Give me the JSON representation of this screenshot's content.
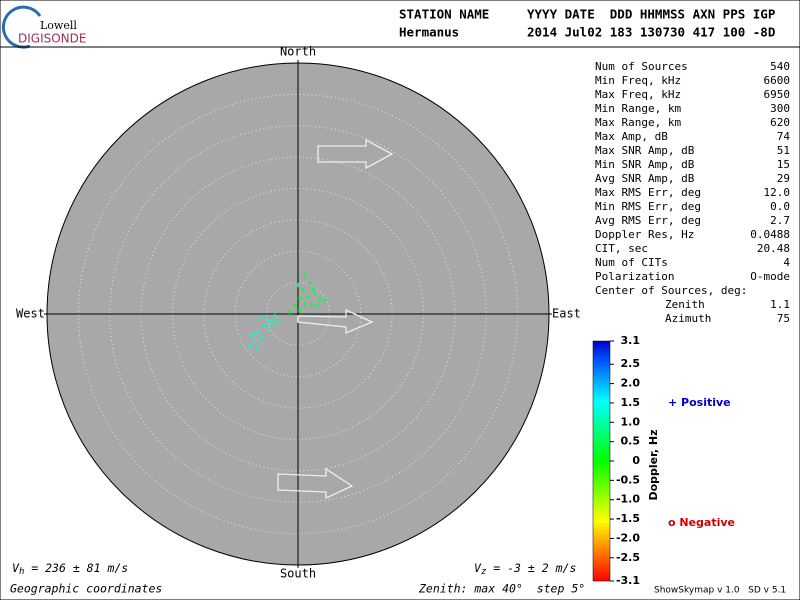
{
  "header": {
    "logo_top": "Lowell",
    "logo_bottom": "DIGISONDE",
    "col_name": "STATION NAME",
    "col_fields": "YYYY DATE  DDD HHMMSS AXN PPS IGP",
    "station": "Hermanus",
    "fields": "2014 Jul02 183 130730 417 100 -8D"
  },
  "skymap": {
    "directions": {
      "north": "North",
      "south": "South",
      "east": "East",
      "west": "West"
    },
    "zenith_max": 40,
    "zenith_rings": [
      5,
      10,
      15,
      20,
      25,
      30,
      35,
      40
    ],
    "sources": [
      [
        1.1,
        6.2,
        0.4
      ],
      [
        1.9,
        4.9,
        0.5
      ],
      [
        0.8,
        3.8,
        0.4
      ],
      [
        2.7,
        3.3,
        0.5
      ],
      [
        0.3,
        2.5,
        0.3
      ],
      [
        1.6,
        2.7,
        0.5
      ],
      [
        3.5,
        2.5,
        0.4
      ],
      [
        -0.5,
        1.4,
        0.2
      ],
      [
        1.1,
        1.6,
        0.4
      ],
      [
        2.2,
        1.3,
        0.5
      ],
      [
        4.3,
        2.2,
        0.3
      ],
      [
        -1.3,
        0.3,
        0.3
      ],
      [
        0.3,
        0.6,
        0.3
      ],
      [
        3.2,
        1.4,
        0.4
      ],
      [
        0.0,
        4.6,
        0.6
      ],
      [
        2.4,
        4.0,
        0.5
      ],
      [
        -5.7,
        -0.6,
        1.3
      ],
      [
        -4.5,
        -1.0,
        1.3
      ],
      [
        -3.7,
        -0.3,
        1.2
      ],
      [
        -5.3,
        -1.9,
        1.3
      ],
      [
        -6.4,
        -2.9,
        1.4
      ],
      [
        -4.8,
        -2.5,
        1.3
      ],
      [
        -6.8,
        -4.1,
        1.4
      ],
      [
        -5.7,
        -3.8,
        1.3
      ],
      [
        -7.6,
        -5.1,
        1.4
      ],
      [
        -6.5,
        -5.4,
        1.3
      ],
      [
        -4.1,
        -1.6,
        1.2
      ],
      [
        -3.2,
        -1.3,
        1.2
      ],
      [
        -7.2,
        -3.3,
        1.4
      ]
    ],
    "vh": {
      "symbol": "V",
      "sub": "h",
      "text": " = 236 ± 81 m/s"
    },
    "vz": {
      "symbol": "V",
      "sub": "z",
      "text": " = -3 ± 2 m/s"
    },
    "coords": "Geographic coordinates",
    "zenith_note": "Zenith: max 40°  step 5°"
  },
  "stats": {
    "rows": [
      [
        "Num of Sources",
        "540"
      ],
      [
        "Min Freq, kHz",
        "6600"
      ],
      [
        "Max Freq, kHz",
        "6950"
      ],
      [
        "Min Range, km",
        "300"
      ],
      [
        "Max Range, km",
        "620"
      ],
      [
        "Max Amp, dB",
        "74"
      ],
      [
        "Max SNR Amp, dB",
        "51"
      ],
      [
        "Min SNR Amp, dB",
        "15"
      ],
      [
        "Avg SNR Amp, dB",
        "29"
      ],
      [
        "Max RMS Err, deg",
        "12.0"
      ],
      [
        "Min RMS Err, deg",
        "0.0"
      ],
      [
        "Avg RMS Err, deg",
        "2.7"
      ],
      [
        "Doppler Res, Hz",
        "0.0488"
      ],
      [
        "CIT, sec",
        "20.48"
      ],
      [
        "Num of CITs",
        "4"
      ],
      [
        "Polarization",
        "O-mode"
      ]
    ],
    "center_title": "Center of Sources, deg:",
    "center_rows": [
      [
        "Zenith",
        "1.1"
      ],
      [
        "Azimuth",
        "75"
      ]
    ]
  },
  "colorbar": {
    "label": "Doppler, Hz",
    "lim": [
      -3.1,
      3.1
    ],
    "ticks": [
      3.1,
      2.5,
      {
        "value": 2,
        "label": "2.0"
      },
      1.5,
      {
        "value": 1,
        "label": "1.0"
      },
      0.5,
      0,
      -0.5,
      {
        "value": -1,
        "label": "-1.0"
      },
      -1.5,
      {
        "value": -2,
        "label": "-2.0"
      },
      -2.5,
      -3.1
    ]
  },
  "legend": {
    "positive": "+ Positive",
    "negative": "o Negative"
  },
  "footer": "ShowSkymap v 1.0   SD v 5.1"
}
